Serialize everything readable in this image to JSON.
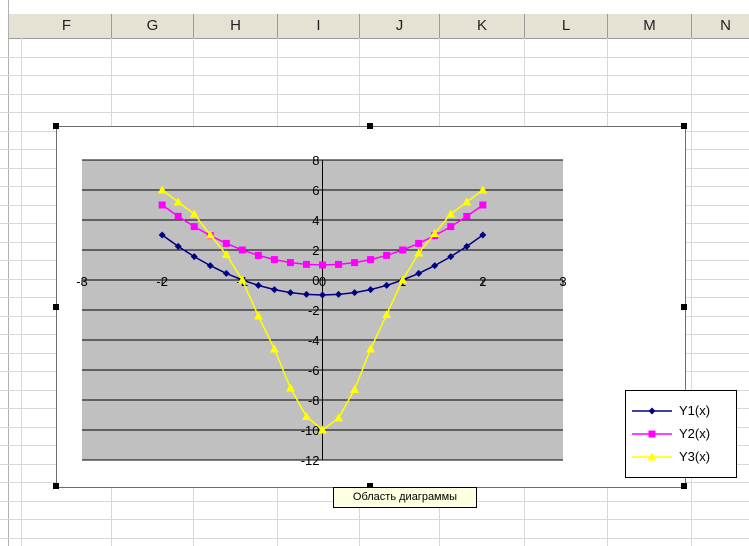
{
  "sheet": {
    "columns": [
      "F",
      "G",
      "H",
      "I",
      "J",
      "K",
      "L",
      "M",
      "N"
    ]
  },
  "chart": {
    "tooltip_label": "Область диаграммы",
    "colors": {
      "plot_background": "#c0c0c0",
      "gridline": "#000000",
      "series1": "#000080",
      "series2": "#ff00ff",
      "series3": "#ffff00"
    }
  },
  "chart_data": {
    "type": "line",
    "xlim": [
      -3,
      3
    ],
    "ylim": [
      -12,
      8
    ],
    "x_ticks": [
      -3,
      -2,
      -1,
      0,
      1,
      2,
      3
    ],
    "y_ticks": [
      8,
      6,
      4,
      2,
      0,
      -2,
      -4,
      -6,
      -8,
      -10,
      -12
    ],
    "grid": true,
    "legend_position": "right",
    "x": [
      -2.0,
      -1.8,
      -1.6,
      -1.4,
      -1.2,
      -1.0,
      -0.8,
      -0.6,
      -0.4,
      -0.2,
      0.0,
      0.2,
      0.4,
      0.6,
      0.8,
      1.0,
      1.2,
      1.4,
      1.6,
      1.8,
      2.0
    ],
    "series": [
      {
        "name": "Y1(x)",
        "marker": "diamond",
        "values": [
          3.0,
          2.24,
          1.56,
          0.96,
          0.44,
          0.0,
          -0.36,
          -0.64,
          -0.84,
          -0.96,
          -1.0,
          -0.96,
          -0.84,
          -0.64,
          -0.36,
          0.0,
          0.44,
          0.96,
          1.56,
          2.24,
          3.0
        ]
      },
      {
        "name": "Y2(x)",
        "marker": "square",
        "values": [
          5.0,
          4.24,
          3.56,
          2.96,
          2.44,
          2.0,
          1.64,
          1.36,
          1.16,
          1.04,
          1.0,
          1.04,
          1.16,
          1.36,
          1.64,
          2.0,
          2.44,
          2.96,
          3.56,
          4.24,
          5.0
        ]
      },
      {
        "name": "Y3(x)",
        "marker": "triangle",
        "values": [
          6.0,
          5.2,
          4.4,
          3.0,
          1.7,
          0.0,
          -2.4,
          -4.6,
          -7.2,
          -9.1,
          -10.0,
          -9.2,
          -7.3,
          -4.6,
          -2.3,
          0.0,
          1.8,
          3.1,
          4.4,
          5.2,
          6.0
        ]
      }
    ]
  }
}
